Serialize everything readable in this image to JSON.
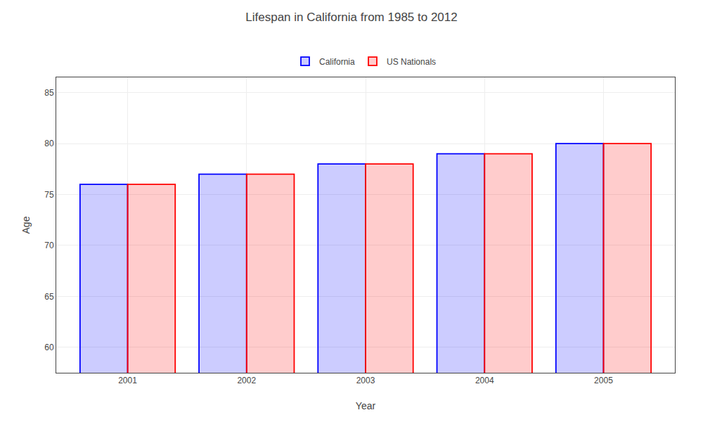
{
  "chart_data": {
    "type": "bar",
    "title": "Lifespan in California from 1985 to 2012",
    "xlabel": "Year",
    "ylabel": "Age",
    "categories": [
      "2001",
      "2002",
      "2003",
      "2004",
      "2005"
    ],
    "series": [
      {
        "name": "California",
        "color": "#0000ff",
        "values": [
          76.0,
          77.0,
          78.0,
          79.0,
          80.0
        ]
      },
      {
        "name": "US Nationals",
        "color": "#ff0000",
        "values": [
          76.0,
          77.0,
          78.0,
          79.0,
          80.0
        ]
      }
    ],
    "ylim": [
      57.5,
      86.5
    ],
    "yticks": [
      60,
      65,
      70,
      75,
      80,
      85
    ],
    "grid": true,
    "legend": "top"
  }
}
